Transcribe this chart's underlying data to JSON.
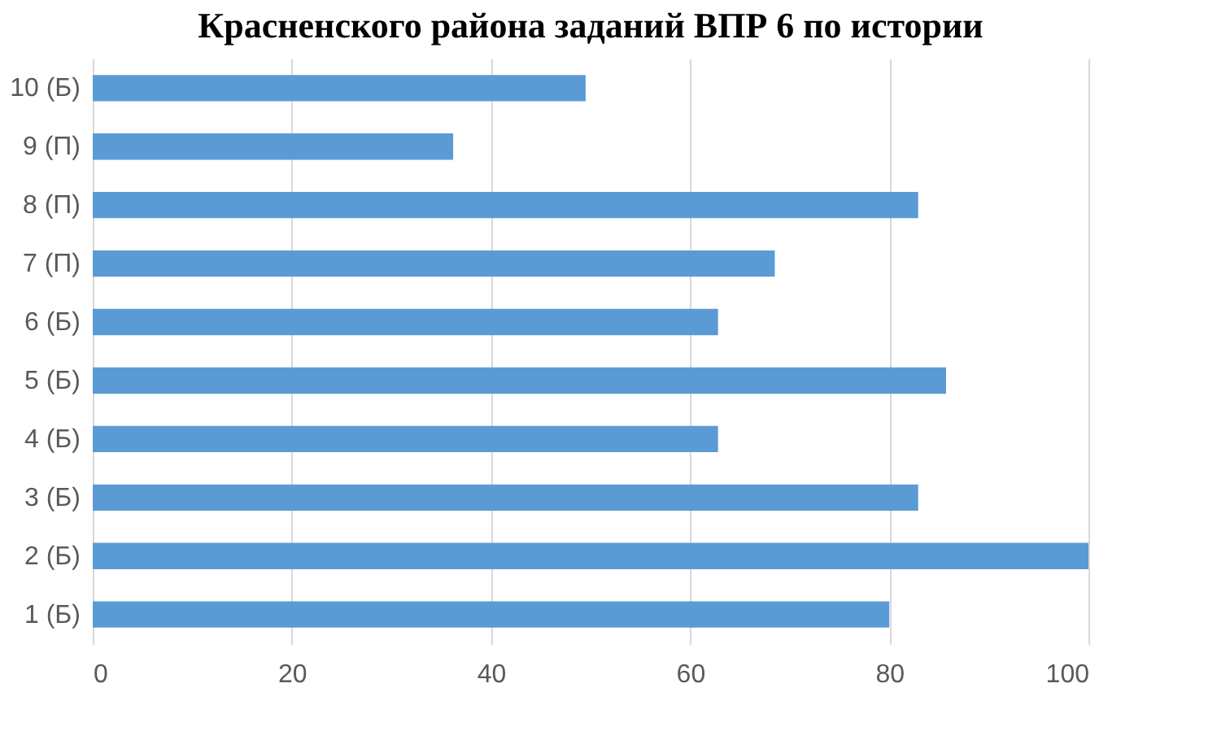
{
  "chart_data": {
    "type": "bar",
    "orientation": "horizontal",
    "title": "Красненского района заданий ВПР 6 по истории",
    "categories": [
      "10 (Б)",
      "9 (П)",
      "8 (П)",
      "7 (П)",
      "6 (Б)",
      "5 (Б)",
      "4 (Б)",
      "3 (Б)",
      "2 (Б)",
      "1 (Б)"
    ],
    "values": [
      49.5,
      36.2,
      82.9,
      68.5,
      62.8,
      85.7,
      62.8,
      82.9,
      100,
      80
    ],
    "color": "#5b9bd5",
    "xlim": [
      0,
      100
    ],
    "xticks": [
      0,
      20,
      40,
      60,
      80,
      100
    ],
    "grid": "x"
  }
}
